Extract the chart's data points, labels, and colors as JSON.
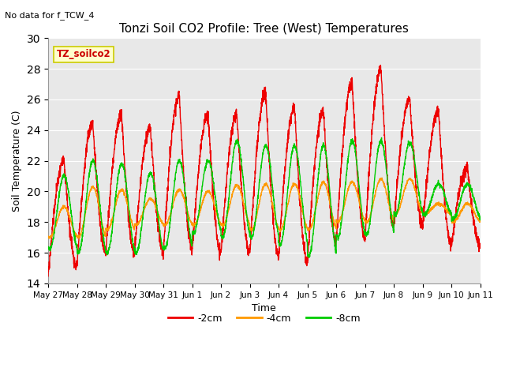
{
  "title": "Tonzi Soil CO2 Profile: Tree (West) Temperatures",
  "subtitle": "No data for f_TCW_4",
  "xlabel": "Time",
  "ylabel": "Soil Temperature (C)",
  "ylim": [
    14,
    30
  ],
  "yticks": [
    14,
    16,
    18,
    20,
    22,
    24,
    26,
    28,
    30
  ],
  "legend_label": "TZ_soilco2",
  "legend_box_facecolor": "#ffffcc",
  "legend_box_edgecolor": "#cccc00",
  "legend_text_color": "#cc0000",
  "line_colors": {
    "2cm": "#ee0000",
    "4cm": "#ff9900",
    "8cm": "#00cc00"
  },
  "plot_bg_color": "#e8e8e8",
  "fig_bg_color": "#ffffff",
  "x_tick_labels": [
    "May 27",
    "May 28",
    "May 29",
    "May 30",
    "May 31",
    "Jun 1",
    "Jun 2",
    "Jun 3",
    "Jun 4",
    "Jun 5",
    "Jun 6",
    "Jun 7",
    "Jun 8",
    "Jun 9",
    "Jun 10",
    "Jun 11"
  ],
  "num_days": 15,
  "freq_per_day": 1.0,
  "title_fontsize": 11,
  "axis_label_fontsize": 9,
  "tick_fontsize": 7.5,
  "legend_fontsize": 9,
  "red_peaks": [
    22.0,
    24.5,
    25.0,
    24.2,
    26.3,
    25.0,
    25.0,
    26.5,
    25.5,
    25.2,
    27.1,
    28.0,
    26.0,
    25.2,
    21.5
  ],
  "red_troughs": [
    14.5,
    15.2,
    16.0,
    16.0,
    16.0,
    16.2,
    16.0,
    16.0,
    15.8,
    15.5,
    16.8,
    17.0,
    17.8,
    17.8,
    16.5
  ],
  "orange_peaks": [
    19.0,
    20.3,
    20.1,
    19.5,
    20.1,
    20.0,
    20.4,
    20.5,
    20.5,
    20.6,
    20.6,
    20.8,
    20.8,
    19.2,
    19.2
  ],
  "orange_troughs": [
    17.0,
    17.0,
    17.5,
    17.8,
    17.8,
    17.8,
    17.8,
    17.5,
    17.5,
    17.5,
    18.0,
    18.0,
    18.5,
    18.5,
    18.0
  ],
  "green_peaks": [
    21.0,
    22.0,
    21.8,
    21.2,
    22.0,
    22.0,
    23.3,
    23.0,
    23.0,
    23.0,
    23.3,
    23.3,
    23.2,
    20.5,
    20.5
  ],
  "green_troughs": [
    16.2,
    16.0,
    16.0,
    16.0,
    16.3,
    17.3,
    17.0,
    17.0,
    16.5,
    15.8,
    17.0,
    17.2,
    18.5,
    18.5,
    18.2
  ]
}
